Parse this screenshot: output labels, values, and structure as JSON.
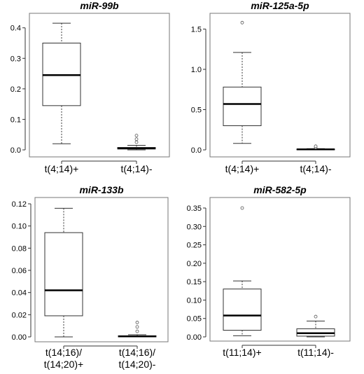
{
  "chart_data": [
    {
      "type": "box",
      "title": "miR-99b",
      "ylim": [
        0,
        0.42
      ],
      "yticks": [
        "0.0",
        "0.1",
        "0.2",
        "0.3",
        "0.4"
      ],
      "grid": false,
      "groups": [
        {
          "label": [
            "t(4;14)+"
          ],
          "min": 0.02,
          "q1": 0.145,
          "median": 0.245,
          "q3": 0.35,
          "max": 0.415,
          "outliers": []
        },
        {
          "label": [
            "t(4;14)-"
          ],
          "min": 0.0,
          "q1": 0.003,
          "median": 0.005,
          "q3": 0.008,
          "max": 0.015,
          "outliers": [
            0.025,
            0.035,
            0.047
          ]
        }
      ]
    },
    {
      "type": "box",
      "title": "miR-125a-5p",
      "ylim": [
        0,
        1.6
      ],
      "yticks": [
        "0.0",
        "0.5",
        "1.0",
        "1.5"
      ],
      "grid": false,
      "groups": [
        {
          "label": [
            "t(4;14)+"
          ],
          "min": 0.08,
          "q1": 0.3,
          "median": 0.57,
          "q3": 0.78,
          "max": 1.21,
          "outliers": [
            1.58
          ]
        },
        {
          "label": [
            "t(4;14)-"
          ],
          "min": 0.0,
          "q1": 0.003,
          "median": 0.006,
          "q3": 0.01,
          "max": 0.015,
          "outliers": [
            0.03,
            0.045
          ]
        }
      ]
    },
    {
      "type": "box",
      "title": "miR-133b",
      "ylim": [
        0,
        0.12
      ],
      "yticks": [
        "0.00",
        "0.02",
        "0.04",
        "0.06",
        "0.08",
        "0.10",
        "0.12"
      ],
      "grid": false,
      "groups": [
        {
          "label": [
            "t(14;16)/",
            "t(14;20)+"
          ],
          "min": 0.0,
          "q1": 0.019,
          "median": 0.042,
          "q3": 0.094,
          "max": 0.116,
          "outliers": []
        },
        {
          "label": [
            "t(14;16)/",
            "t(14;20)-"
          ],
          "min": 0.0,
          "q1": 0.0,
          "median": 0.0005,
          "q3": 0.001,
          "max": 0.002,
          "outliers": [
            0.005,
            0.009,
            0.013
          ]
        }
      ]
    },
    {
      "type": "box",
      "title": "miR-582-5p",
      "ylim": [
        0,
        0.35
      ],
      "yticks": [
        "0.00",
        "0.05",
        "0.10",
        "0.15",
        "0.20",
        "0.25",
        "0.30",
        "0.35"
      ],
      "grid": false,
      "groups": [
        {
          "label": [
            "t(11;14)+"
          ],
          "min": 0.003,
          "q1": 0.018,
          "median": 0.058,
          "q3": 0.13,
          "max": 0.152,
          "outliers": [
            0.35
          ]
        },
        {
          "label": [
            "t(11;14)-"
          ],
          "min": 0.0,
          "q1": 0.002,
          "median": 0.01,
          "q3": 0.022,
          "max": 0.043,
          "outliers": [
            0.055
          ]
        }
      ]
    }
  ]
}
